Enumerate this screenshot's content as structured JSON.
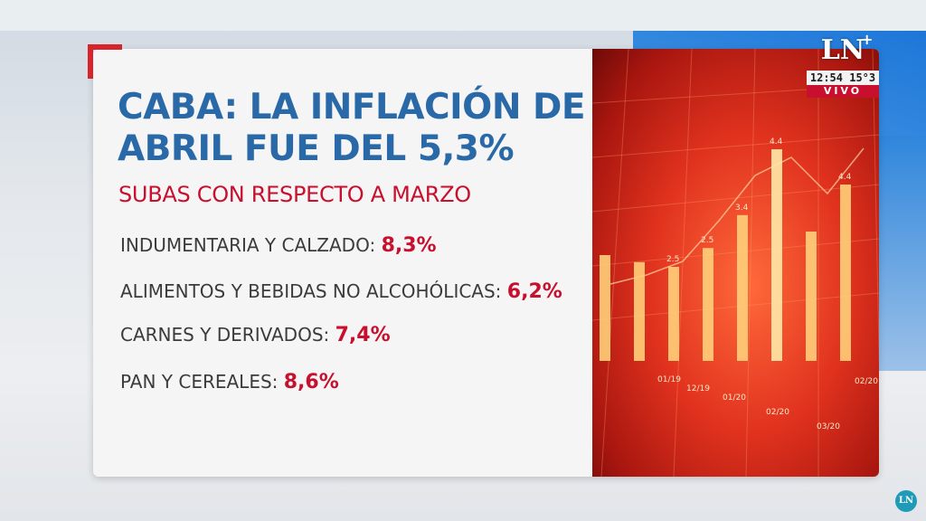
{
  "headline": {
    "title_line1": "CABA: LA INFLACIÓN DE",
    "title_line2": "ABRIL FUE DEL 5,3%",
    "subtitle": "SUBAS CON RESPECTO A MARZO"
  },
  "items": [
    {
      "label": "INDUMENTARIA Y CALZADO:",
      "value": "8,3%"
    },
    {
      "label": "ALIMENTOS Y BEBIDAS NO ALCOHÓLICAS:",
      "value": "6,2%"
    },
    {
      "label": "CARNES Y DERIVADOS:",
      "value": "7,4%"
    },
    {
      "label": "PAN Y CEREALES:",
      "value": "8,6%"
    }
  ],
  "chart_image": {
    "bar_labels": [
      "2.5",
      "2.5",
      "3.4",
      "4.4",
      "4.4"
    ],
    "date_labels": [
      "01/19",
      "12/19",
      "01/20",
      "02/20",
      "03/20",
      "02/20"
    ],
    "bar_levels": [
      0.45,
      0.42,
      0.4,
      0.48,
      0.62,
      0.9,
      0.55,
      0.75
    ]
  },
  "broadcast": {
    "logo": "LN",
    "logo_plus": "+",
    "time": "12:54 15°3",
    "live": "VIVO",
    "corner_bug": "LN"
  },
  "colors": {
    "title": "#2a69a8",
    "accent": "#c8102e",
    "body_text": "#3b3b3b"
  }
}
